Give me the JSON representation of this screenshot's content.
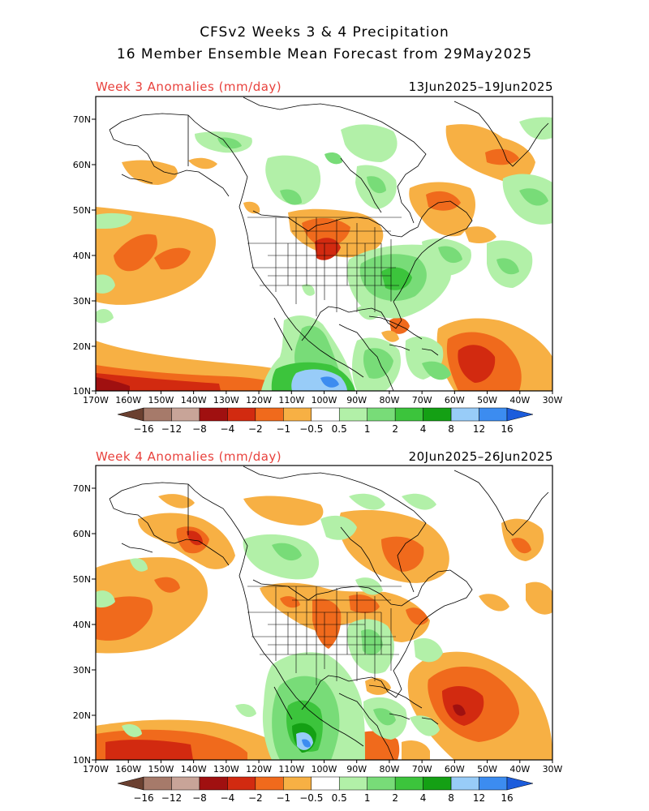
{
  "header": {
    "title_line1": "CFSv2 Weeks 3 & 4 Precipitation",
    "title_line2": "16 Member Ensemble Mean Forecast from 29May2025"
  },
  "panels": [
    {
      "label": "Week 3 Anomalies (mm/day)",
      "dates": "13Jun2025–19Jun2025"
    },
    {
      "label": "Week 4 Anomalies (mm/day)",
      "dates": "20Jun2025–26Jun2025"
    }
  ],
  "axes": {
    "lat_labels": [
      "70N",
      "60N",
      "50N",
      "40N",
      "30N",
      "20N",
      "10N"
    ],
    "lon_labels": [
      "170W",
      "160W",
      "150W",
      "140W",
      "130W",
      "120W",
      "110W",
      "100W",
      "90W",
      "80W",
      "70W",
      "60W",
      "50W",
      "40W",
      "30W"
    ]
  },
  "colorbar": {
    "labels": [
      "−16",
      "−12",
      "−8",
      "−4",
      "−2",
      "−1",
      "−0.5",
      "0.5",
      "1",
      "2",
      "4",
      "8",
      "12",
      "16"
    ],
    "colors": [
      "#6b4030",
      "#a67a6a",
      "#c8a498",
      "#a01010",
      "#d22a10",
      "#f06a1c",
      "#f7b044",
      "#ffffff",
      "#b2f0a8",
      "#78dc78",
      "#3cc43c",
      "#14a014",
      "#98ccf8",
      "#3c8cf0",
      "#1c5cdc"
    ]
  },
  "colors": {
    "dry_light": "#f7b044",
    "dry_medium": "#f06a1c",
    "dry_strong": "#d22a10",
    "dry_extreme": "#a01010",
    "wet_light": "#b2f0a8",
    "wet_medium": "#78dc78",
    "wet_strong": "#3cc43c",
    "wet_extreme": "#14a014",
    "very_wet": "#98ccf8",
    "label_red": "#e8413c"
  }
}
